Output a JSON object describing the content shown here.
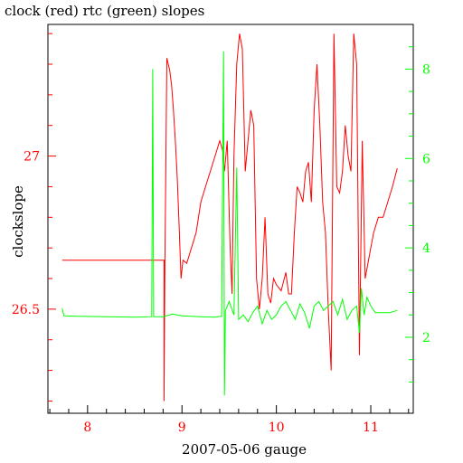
{
  "chart_data": {
    "type": "line",
    "title": "clock (red) rtc (green) slopes",
    "xlabel": "2007-05-06 gauge",
    "ylabel": "clockslope",
    "xlim": [
      7.58,
      11.45
    ],
    "ylim": [
      26.16,
      27.43
    ],
    "y2lim": [
      0.3,
      9.0
    ],
    "x_ticks": [
      "8",
      "9",
      "10",
      "11"
    ],
    "y_ticks": [
      "26.5",
      "27"
    ],
    "y2_ticks": [
      "2",
      "4",
      "6",
      "8"
    ],
    "colors": {
      "left_axis": "#ff0000",
      "right_axis": "#00ff00",
      "frame": "#000000"
    },
    "series": [
      {
        "name": "clock",
        "axis": "left",
        "color": "#ff0000",
        "points": [
          [
            7.73,
            26.66
          ],
          [
            8.81,
            26.66
          ],
          [
            8.81,
            26.2
          ],
          [
            8.82,
            26.66
          ],
          [
            8.84,
            27.32
          ],
          [
            8.87,
            27.28
          ],
          [
            8.89,
            27.23
          ],
          [
            8.91,
            27.15
          ],
          [
            8.93,
            27.05
          ],
          [
            8.95,
            26.93
          ],
          [
            8.97,
            26.77
          ],
          [
            8.99,
            26.6
          ],
          [
            9.01,
            26.66
          ],
          [
            9.05,
            26.65
          ],
          [
            9.1,
            26.7
          ],
          [
            9.15,
            26.75
          ],
          [
            9.2,
            26.85
          ],
          [
            9.25,
            26.9
          ],
          [
            9.3,
            26.95
          ],
          [
            9.35,
            27.0
          ],
          [
            9.4,
            27.05
          ],
          [
            9.43,
            27.02
          ],
          [
            9.45,
            26.95
          ],
          [
            9.48,
            27.05
          ],
          [
            9.51,
            26.7
          ],
          [
            9.53,
            26.55
          ],
          [
            9.55,
            27.0
          ],
          [
            9.58,
            27.3
          ],
          [
            9.61,
            27.4
          ],
          [
            9.64,
            27.35
          ],
          [
            9.67,
            26.95
          ],
          [
            9.7,
            27.05
          ],
          [
            9.73,
            27.15
          ],
          [
            9.76,
            27.1
          ],
          [
            9.79,
            26.6
          ],
          [
            9.82,
            26.5
          ],
          [
            9.85,
            26.6
          ],
          [
            9.88,
            26.8
          ],
          [
            9.91,
            26.55
          ],
          [
            9.94,
            26.52
          ],
          [
            9.97,
            26.6
          ],
          [
            10.0,
            26.58
          ],
          [
            10.05,
            26.56
          ],
          [
            10.1,
            26.62
          ],
          [
            10.13,
            26.55
          ],
          [
            10.16,
            26.55
          ],
          [
            10.19,
            26.75
          ],
          [
            10.22,
            26.9
          ],
          [
            10.25,
            26.88
          ],
          [
            10.28,
            26.85
          ],
          [
            10.31,
            26.95
          ],
          [
            10.34,
            26.98
          ],
          [
            10.37,
            26.85
          ],
          [
            10.4,
            27.15
          ],
          [
            10.43,
            27.3
          ],
          [
            10.46,
            27.1
          ],
          [
            10.49,
            26.85
          ],
          [
            10.52,
            26.75
          ],
          [
            10.55,
            26.5
          ],
          [
            10.58,
            26.3
          ],
          [
            10.61,
            27.4
          ],
          [
            10.64,
            26.9
          ],
          [
            10.67,
            26.88
          ],
          [
            10.7,
            26.95
          ],
          [
            10.73,
            27.1
          ],
          [
            10.76,
            27.0
          ],
          [
            10.79,
            26.95
          ],
          [
            10.82,
            27.4
          ],
          [
            10.85,
            27.3
          ],
          [
            10.88,
            26.35
          ],
          [
            10.91,
            27.05
          ],
          [
            10.94,
            26.6
          ],
          [
            10.97,
            26.65
          ],
          [
            11.0,
            26.7
          ],
          [
            11.03,
            26.75
          ],
          [
            11.08,
            26.8
          ],
          [
            11.13,
            26.8
          ],
          [
            11.18,
            26.85
          ],
          [
            11.23,
            26.9
          ],
          [
            11.28,
            26.96
          ]
        ]
      },
      {
        "name": "rtc",
        "axis": "right",
        "color": "#00ff00",
        "points": [
          [
            7.73,
            2.65
          ],
          [
            7.75,
            2.48
          ],
          [
            7.9,
            2.47
          ],
          [
            8.2,
            2.46
          ],
          [
            8.5,
            2.45
          ],
          [
            8.68,
            2.46
          ],
          [
            8.69,
            8.0
          ],
          [
            8.7,
            2.46
          ],
          [
            8.8,
            2.46
          ],
          [
            8.9,
            2.52
          ],
          [
            9.0,
            2.48
          ],
          [
            9.2,
            2.46
          ],
          [
            9.35,
            2.45
          ],
          [
            9.42,
            2.47
          ],
          [
            9.44,
            8.4
          ],
          [
            9.45,
            0.7
          ],
          [
            9.46,
            2.6
          ],
          [
            9.5,
            2.8
          ],
          [
            9.55,
            2.5
          ],
          [
            9.58,
            5.8
          ],
          [
            9.6,
            2.4
          ],
          [
            9.65,
            2.5
          ],
          [
            9.7,
            2.35
          ],
          [
            9.75,
            2.55
          ],
          [
            9.8,
            2.7
          ],
          [
            9.85,
            2.3
          ],
          [
            9.9,
            2.6
          ],
          [
            9.95,
            2.4
          ],
          [
            10.0,
            2.5
          ],
          [
            10.05,
            2.7
          ],
          [
            10.1,
            2.8
          ],
          [
            10.15,
            2.6
          ],
          [
            10.2,
            2.4
          ],
          [
            10.25,
            2.75
          ],
          [
            10.3,
            2.55
          ],
          [
            10.35,
            2.2
          ],
          [
            10.4,
            2.7
          ],
          [
            10.45,
            2.8
          ],
          [
            10.5,
            2.6
          ],
          [
            10.55,
            2.7
          ],
          [
            10.6,
            2.8
          ],
          [
            10.65,
            2.5
          ],
          [
            10.7,
            2.85
          ],
          [
            10.75,
            2.4
          ],
          [
            10.8,
            2.6
          ],
          [
            10.85,
            2.7
          ],
          [
            10.88,
            2.1
          ],
          [
            10.9,
            3.1
          ],
          [
            10.93,
            2.5
          ],
          [
            10.96,
            2.9
          ],
          [
            11.0,
            2.7
          ],
          [
            11.05,
            2.55
          ],
          [
            11.1,
            2.55
          ],
          [
            11.2,
            2.55
          ],
          [
            11.28,
            2.6
          ]
        ]
      }
    ]
  }
}
